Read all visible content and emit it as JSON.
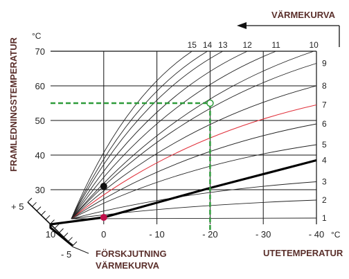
{
  "chart_data": {
    "type": "line",
    "title": "VÄRMEKURVA",
    "xlabel": "UTETEMPERATUR",
    "ylabel": "FRAMLEDNINGSTEMPERATUR",
    "x_unit": "°C",
    "y_unit": "°C",
    "x_direction": "reversed",
    "xlim": [
      10,
      -40
    ],
    "ylim": [
      20,
      70
    ],
    "x_tick_labels": [
      "10",
      "0",
      "- 10",
      "- 20",
      "- 30",
      "- 40"
    ],
    "x_tick_values": [
      10,
      0,
      -10,
      -20,
      -30,
      -40
    ],
    "y_tick_labels": [
      "30",
      "40",
      "50",
      "60",
      "70"
    ],
    "y_tick_values": [
      30,
      40,
      50,
      60,
      70
    ],
    "grid": true,
    "curve_labels": [
      "1",
      "2",
      "3",
      "4",
      "5",
      "6",
      "7",
      "8",
      "9",
      "10",
      "11",
      "12",
      "13",
      "14",
      "15"
    ],
    "series": [
      {
        "name": "1",
        "x": [
          10,
          -40
        ],
        "y": [
          20,
          21.8
        ]
      },
      {
        "name": "2",
        "x": [
          10,
          -40
        ],
        "y": [
          20,
          27
        ]
      },
      {
        "name": "3",
        "x": [
          10,
          -40
        ],
        "y": [
          20,
          32.3
        ]
      },
      {
        "name": "4",
        "x": [
          10,
          0,
          -20,
          -40
        ],
        "y": [
          20,
          22,
          30.5,
          38.5
        ]
      },
      {
        "name": "5",
        "x": [
          10,
          -40
        ],
        "y": [
          20,
          43
        ]
      },
      {
        "name": "6",
        "x": [
          10,
          -40
        ],
        "y": [
          20,
          49
        ]
      },
      {
        "name": "7",
        "x": [
          10,
          -40
        ],
        "y": [
          20,
          54.5
        ]
      },
      {
        "name": "8",
        "x": [
          10,
          -40
        ],
        "y": [
          20,
          60
        ]
      },
      {
        "name": "9",
        "x": [
          10,
          -40
        ],
        "y": [
          20,
          66.5
        ]
      },
      {
        "name": "10",
        "x": [
          10,
          -39.5
        ],
        "y": [
          20,
          70
        ]
      },
      {
        "name": "11",
        "x": [
          10,
          -32.4
        ],
        "y": [
          20,
          70
        ]
      },
      {
        "name": "12",
        "x": [
          10,
          -27
        ],
        "y": [
          20,
          70
        ]
      },
      {
        "name": "13",
        "x": [
          10,
          -22.4
        ],
        "y": [
          20,
          70
        ]
      },
      {
        "name": "14",
        "x": [
          10,
          -19.5
        ],
        "y": [
          20,
          70
        ]
      },
      {
        "name": "15",
        "x": [
          10,
          -16.6
        ],
        "y": [
          20,
          70
        ]
      }
    ],
    "highlighted_curve": "7",
    "bold_curve": "4",
    "reading_example": {
      "x": -20,
      "y": 55,
      "style": "dashed",
      "color": "#2e9b3a"
    },
    "points": [
      {
        "x": 0,
        "y": 31,
        "color": "#111111"
      },
      {
        "x": 0,
        "y": 22,
        "color": "#c0104a"
      }
    ],
    "offset_scale": {
      "title_lines": [
        "FÖRSKJUTNING",
        "VÄRMEKURVA"
      ],
      "top_label": "+ 5",
      "bottom_label": "- 5"
    },
    "colors": {
      "grid": "#111111",
      "curves": "#222222",
      "highlight": "#e0303a",
      "example": "#2e9b3a",
      "labels": "#5a2f2b"
    }
  }
}
